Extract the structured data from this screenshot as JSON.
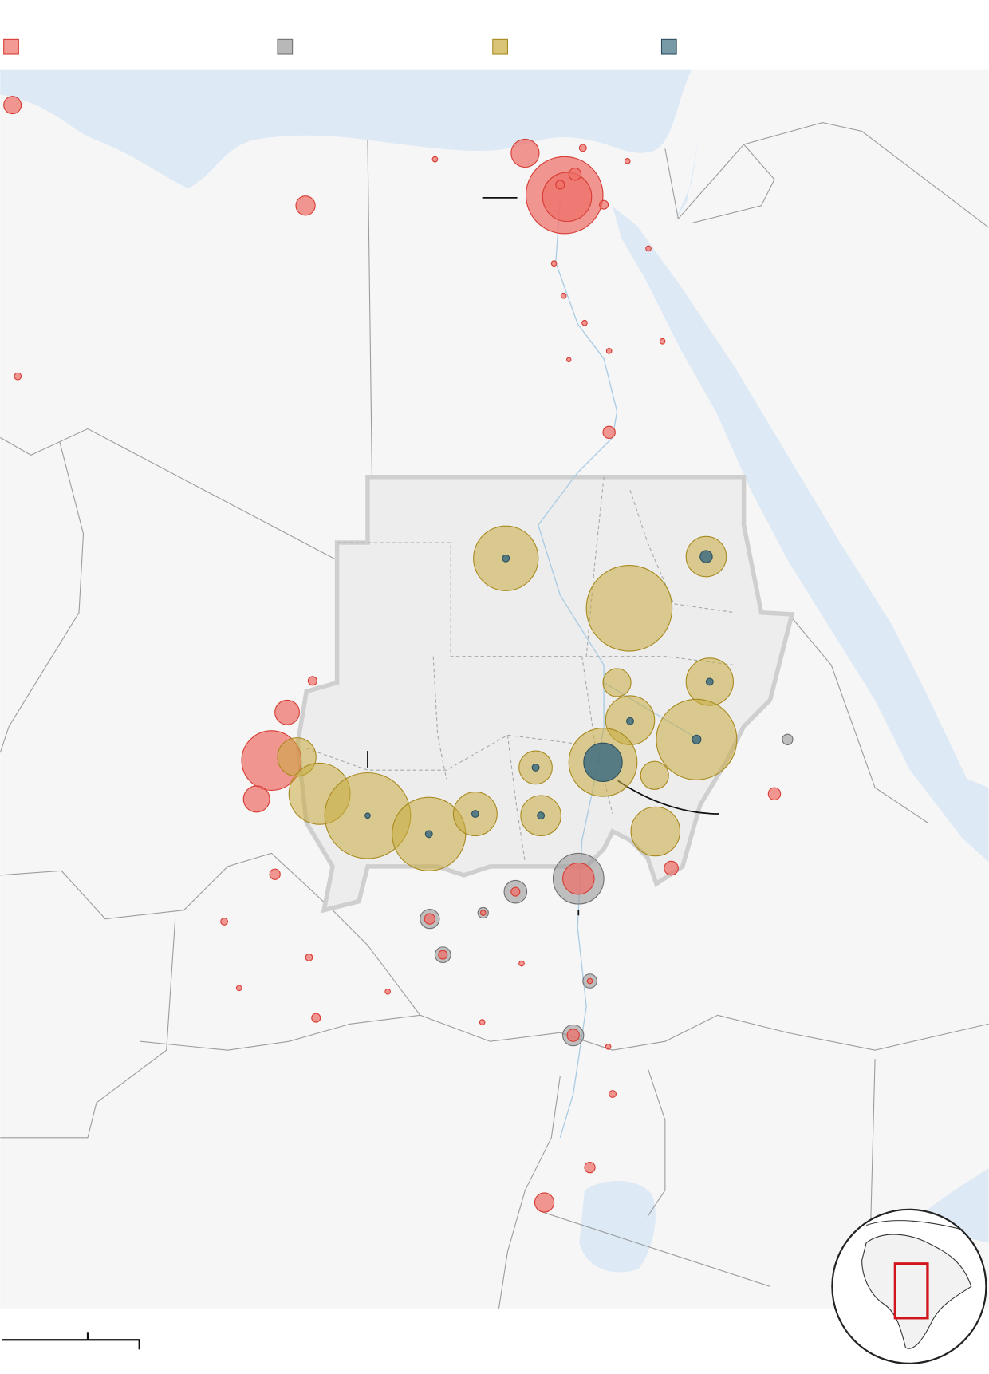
{
  "legend": [
    {
      "color": "#ef6f68",
      "stroke": "#d63b33"
    },
    {
      "color": "#9a9a9a",
      "stroke": "#707070"
    },
    {
      "color": "#c9ab3f",
      "stroke": "#a8891e"
    },
    {
      "color": "#3f6d80",
      "stroke": "#2b4f5e"
    }
  ],
  "markers": [
    {
      "group": 0,
      "value": 100
    },
    {
      "group": 0,
      "value": 121
    },
    {
      "group": 0,
      "value": 256
    },
    {
      "group": 0,
      "value": 1936
    },
    {
      "group": 0,
      "value": 784
    },
    {
      "group": 0,
      "value": 49
    },
    {
      "group": 0,
      "value": 25
    },
    {
      "group": 0,
      "value": 25
    },
    {
      "group": 0,
      "value": 16
    },
    {
      "group": 0,
      "value": 9
    },
    {
      "group": 0,
      "value": 16
    },
    {
      "group": 0,
      "value": 9
    },
    {
      "group": 0,
      "value": 9
    },
    {
      "group": 0,
      "value": 9
    },
    {
      "group": 0,
      "value": 9
    },
    {
      "group": 0,
      "value": 9
    },
    {
      "group": 0,
      "value": 9
    },
    {
      "group": 0,
      "value": 9
    },
    {
      "group": 0,
      "value": 6
    },
    {
      "group": 0,
      "value": 49
    },
    {
      "group": 0,
      "value": 25
    },
    {
      "group": 0,
      "value": 196
    },
    {
      "group": 0,
      "value": 1156
    },
    {
      "group": 0,
      "value": 225
    },
    {
      "group": 0,
      "value": 49
    },
    {
      "group": 0,
      "value": 64
    },
    {
      "group": 0,
      "value": 36
    },
    {
      "group": 0,
      "value": 16
    },
    {
      "group": 0,
      "value": 16
    },
    {
      "group": 0,
      "value": 9
    },
    {
      "group": 0,
      "value": 9
    },
    {
      "group": 0,
      "value": 25
    },
    {
      "group": 0,
      "value": 9
    },
    {
      "group": 0,
      "value": 9
    },
    {
      "group": 0,
      "value": 9
    },
    {
      "group": 0,
      "value": 16
    },
    {
      "group": 0,
      "value": 36
    },
    {
      "group": 0,
      "value": 121
    },
    {
      "group": 1,
      "value": 36
    },
    {
      "group": 1,
      "value": 841
    },
    {
      "group": 1,
      "value": 169
    },
    {
      "group": 1,
      "value": 121
    },
    {
      "group": 1,
      "value": 36
    },
    {
      "group": 1,
      "value": 81
    },
    {
      "group": 1,
      "value": 64
    },
    {
      "group": 1,
      "value": 144
    },
    {
      "group": 0,
      "value": 324
    },
    {
      "group": 0,
      "value": 25
    },
    {
      "group": 0,
      "value": 36
    },
    {
      "group": 0,
      "value": 25
    },
    {
      "group": 0,
      "value": 9
    },
    {
      "group": 0,
      "value": 49
    },
    {
      "group": 0,
      "value": 9
    },
    {
      "group": 2,
      "value": 1369
    },
    {
      "group": 2,
      "value": 529
    },
    {
      "group": 2,
      "value": 2401
    },
    {
      "group": 2,
      "value": 256
    },
    {
      "group": 2,
      "value": 729
    },
    {
      "group": 2,
      "value": 784
    },
    {
      "group": 2,
      "value": 2116
    },
    {
      "group": 2,
      "value": 361
    },
    {
      "group": 2,
      "value": 1521
    },
    {
      "group": 2,
      "value": 256
    },
    {
      "group": 2,
      "value": 484
    },
    {
      "group": 2,
      "value": 1225
    },
    {
      "group": 2,
      "value": 2401
    },
    {
      "group": 2,
      "value": 1764
    },
    {
      "group": 2,
      "value": 625
    },
    {
      "group": 2,
      "value": 529
    },
    {
      "group": 2,
      "value": 784
    },
    {
      "group": 3,
      "value": 16
    },
    {
      "group": 3,
      "value": 49
    },
    {
      "group": 3,
      "value": 16
    },
    {
      "group": 3,
      "value": 16
    },
    {
      "group": 3,
      "value": 25
    },
    {
      "group": 3,
      "value": 16
    },
    {
      "group": 3,
      "value": 484
    },
    {
      "group": 3,
      "value": 9
    },
    {
      "group": 3,
      "value": 16
    },
    {
      "group": 3,
      "value": 16
    },
    {
      "group": 3,
      "value": 16
    }
  ]
}
